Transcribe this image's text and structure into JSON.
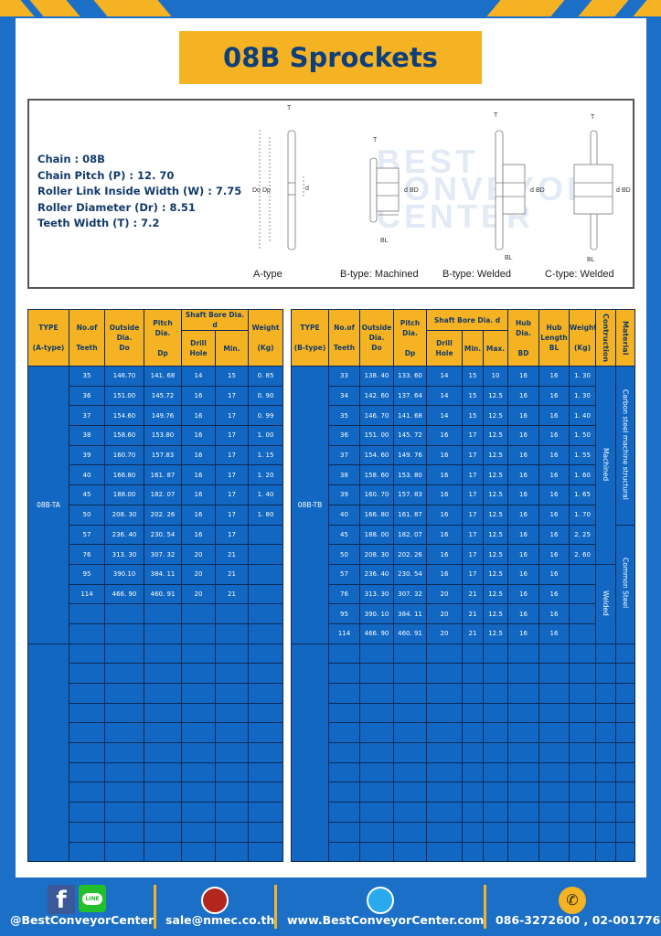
{
  "title": "08B Sprockets",
  "colors": {
    "background": "#1b6fc6",
    "accent": "#f5b323",
    "table_cell": "#1167c2",
    "title_text": "#0f3f7a"
  },
  "specs": [
    {
      "label": "Chain",
      "value": "08B",
      "text": "Chain  : 08B"
    },
    {
      "label": "Chain Pitch (P)",
      "value": "12. 70",
      "text": "Chain Pitch (P)  :  12. 70"
    },
    {
      "label": "Roller Link Inside Width (W)",
      "value": "7.75",
      "text": "Roller Link Inside Width (W)  :  7.75"
    },
    {
      "label": "Roller Diameter (Dr)",
      "value": "8.51",
      "text": "Roller Diameter (Dr)  : 8.51"
    },
    {
      "label": "Teeth Width (T)",
      "value": "7.2",
      "text": "Teeth Width (T)  :  7.2"
    }
  ],
  "diagram": {
    "captions": [
      "A-type",
      "B-type: Machined",
      "B-type: Welded",
      "C-type: Welded"
    ],
    "dim_labels": {
      "T": "T",
      "Do": "Do",
      "Dp": "Dp",
      "d": "d",
      "BD": "BD",
      "BL": "BL"
    },
    "watermark": "BEST CONVEYOR CENTER"
  },
  "left_table": {
    "headers": {
      "type": "TYPE",
      "type_sub": "(A-type)",
      "teeth": "No.of",
      "teeth_sub": "Teeth",
      "outside": "Outside",
      "outside_sub": "Dia.",
      "outside_sub2": "Do",
      "pitch": "Pitch Dia.",
      "pitch_sub": "Dp",
      "shaft": "Shaft Bore Dia. d",
      "drill": "Drill Hole",
      "min": "Min.",
      "weight": "Weight",
      "weight_sub": "(Kg)"
    },
    "type_value": "08B-TA",
    "rows": [
      [
        "35",
        "146.70",
        "141. 68",
        "14",
        "15",
        "0. 85"
      ],
      [
        "36",
        "151.00",
        "145.72",
        "16",
        "17",
        "0. 90"
      ],
      [
        "37",
        "154.60",
        "149.76",
        "16",
        "17",
        "0. 99"
      ],
      [
        "38",
        "158.60",
        "153.80",
        "16",
        "17",
        "1. 00"
      ],
      [
        "39",
        "160.70",
        "157.83",
        "16",
        "17",
        "1. 15"
      ],
      [
        "40",
        "166.80",
        "161. 87",
        "16",
        "17",
        "1. 20"
      ],
      [
        "45",
        "188.00",
        "182. 07",
        "16",
        "17",
        "1. 40"
      ],
      [
        "50",
        "208. 30",
        "202. 26",
        "16",
        "17",
        "1. 80"
      ],
      [
        "57",
        "236. 40",
        "230. 54",
        "16",
        "17",
        ""
      ],
      [
        "76",
        "313. 30",
        "307. 32",
        "20",
        "21",
        ""
      ],
      [
        "95",
        "390.10",
        "384. 11",
        "20",
        "21",
        ""
      ],
      [
        "114",
        "466. 90",
        "460. 91",
        "20",
        "21",
        ""
      ]
    ]
  },
  "right_table": {
    "headers": {
      "type": "TYPE",
      "type_sub": "(B-type)",
      "teeth": "No.of",
      "teeth_sub": "Teeth",
      "outside": "Outside",
      "outside_sub": "Dia.",
      "outside_sub2": "Do",
      "pitch": "Pitch Dia.",
      "pitch_sub": "Dp",
      "shaft": "Shaft Bore Dia. d",
      "drill": "Drill Hole",
      "min": "Min.",
      "max": "Max.",
      "hub_dia": "Hub Dia.",
      "hub_dia_sub": "BD",
      "hub_len": "Hub",
      "hub_len_sub": "Length",
      "hub_len_sub2": "BL",
      "weight": "Weight",
      "weight_sub": "(Kg)",
      "construction": "Contruction",
      "material": "Material"
    },
    "type_value": "08B-TB",
    "construction": [
      {
        "label": "Machined",
        "rows": 10
      },
      {
        "label": "Welded",
        "rows": 4
      }
    ],
    "material": [
      {
        "label": "Carbon steel  machine structural",
        "rows": 8
      },
      {
        "label": "Common Steel",
        "rows": 6
      }
    ],
    "rows": [
      [
        "33",
        "138. 40",
        "133. 60",
        "14",
        "15",
        "10",
        "16",
        "16",
        "1. 30"
      ],
      [
        "34",
        "142. 60",
        "137. 64",
        "14",
        "15",
        "12.5",
        "16",
        "16",
        "1. 30"
      ],
      [
        "35",
        "146. 70",
        "141. 68",
        "14",
        "15",
        "12.5",
        "16",
        "16",
        "1. 40"
      ],
      [
        "36",
        "151. 00",
        "145. 72",
        "16",
        "17",
        "12.5",
        "16",
        "16",
        "1. 50"
      ],
      [
        "37",
        "154. 60",
        "149. 76",
        "16",
        "17",
        "12.5",
        "16",
        "16",
        "1. 55"
      ],
      [
        "38",
        "158. 60",
        "153. 80",
        "16",
        "17",
        "12.5",
        "16",
        "16",
        "1. 60"
      ],
      [
        "39",
        "160. 70",
        "157. 83",
        "16",
        "17",
        "12.5",
        "16",
        "16",
        "1. 65"
      ],
      [
        "40",
        "166. 80",
        "161. 87",
        "16",
        "17",
        "12.5",
        "16",
        "16",
        "1. 70"
      ],
      [
        "45",
        "188. 00",
        "182. 07",
        "16",
        "17",
        "12.5",
        "16",
        "16",
        "2. 25"
      ],
      [
        "50",
        "208. 30",
        "202. 26",
        "16",
        "17",
        "12.5",
        "16",
        "16",
        "2. 60"
      ],
      [
        "57",
        "236. 40",
        "230. 54",
        "16",
        "17",
        "12.5",
        "16",
        "16",
        ""
      ],
      [
        "76",
        "313. 30",
        "307. 32",
        "20",
        "21",
        "12.5",
        "16",
        "16",
        ""
      ],
      [
        "95",
        "390. 10",
        "384. 11",
        "20",
        "21",
        "12.5",
        "16",
        "16",
        ""
      ],
      [
        "114",
        "466. 90",
        "460. 91",
        "20",
        "21",
        "12.5",
        "16",
        "16",
        ""
      ]
    ]
  },
  "footer": {
    "social": "@BestConveyorCenter",
    "social_icons": [
      "facebook-icon",
      "line-icon"
    ],
    "line_badge": "LINE",
    "email": "sale@nmec.co.th",
    "website": "www.BestConveyorCenter.com",
    "phone": "086-3272600 , 02-0017766"
  }
}
